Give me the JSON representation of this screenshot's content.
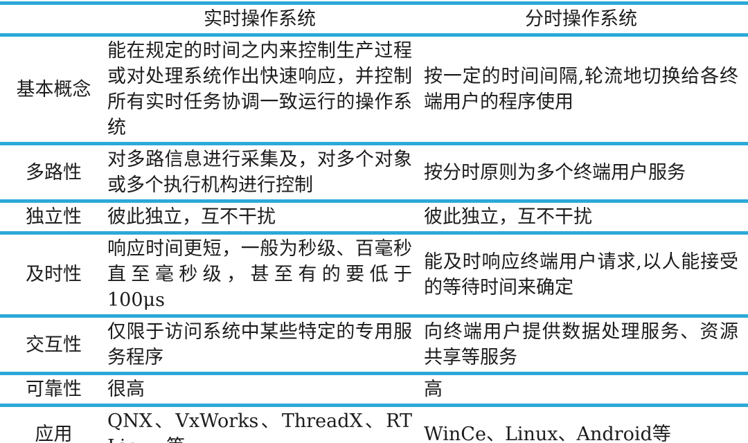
{
  "accent_color": "#2BA9D8",
  "table": {
    "header": {
      "corner": "",
      "real_time": "实时操作系统",
      "time_sharing": "分时操作系统"
    },
    "rows": [
      {
        "label": "基本概念",
        "real_time": "能在规定的时间之内来控制生产过程或对处理系统作出快速响应，并控制所有实时任务协调一致运行的操作系统",
        "time_sharing": "按一定的时间间隔,轮流地切换给各终端用户的程序使用"
      },
      {
        "label": "多路性",
        "real_time": "对多路信息进行采集及，对多个对象或多个执行机构进行控制",
        "time_sharing": "按分时原则为多个终端用户服务"
      },
      {
        "label": "独立性",
        "real_time": "彼此独立，互不干扰",
        "time_sharing": "彼此独立，互不干扰"
      },
      {
        "label": "及时性",
        "real_time": "响应时间更短，一般为秒级、百毫秒直至毫秒级，甚至有的要低于 100μs",
        "time_sharing": "能及时响应终端用户请求,以人能接受的等待时间来确定"
      },
      {
        "label": "交互性",
        "real_time": "仅限于访问系统中某些特定的专用服务程序",
        "time_sharing": "向终端用户提供数据处理服务、资源共享等服务"
      },
      {
        "label": "可靠性",
        "real_time": "很高",
        "time_sharing": "高"
      },
      {
        "label": "应用",
        "real_time": "QNX、VxWorks、ThreadX、RT Linux 等",
        "time_sharing": "WinCe、Linux、Android等"
      }
    ]
  }
}
